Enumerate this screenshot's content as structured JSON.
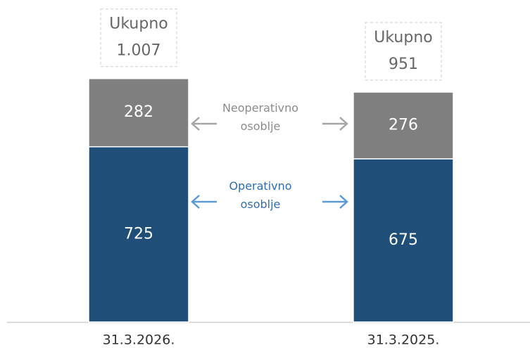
{
  "chart_data": {
    "type": "stacked_bar",
    "categories": [
      "31.3.2026.",
      "31.3.2025."
    ],
    "series": [
      {
        "name": "Operativno osoblje",
        "color": "#1f4e79",
        "label_color": "#2f6db5",
        "values": [
          725,
          675
        ]
      },
      {
        "name": "Neoperativno osoblje",
        "color": "#7f7f7f",
        "label_color": "#8c8c8c",
        "values": [
          282,
          276
        ]
      }
    ],
    "totals": {
      "label": "Ukupno",
      "values": [
        1007,
        951
      ],
      "value_labels": [
        "1.007",
        "951"
      ]
    },
    "ylim": [
      0,
      1300
    ]
  }
}
